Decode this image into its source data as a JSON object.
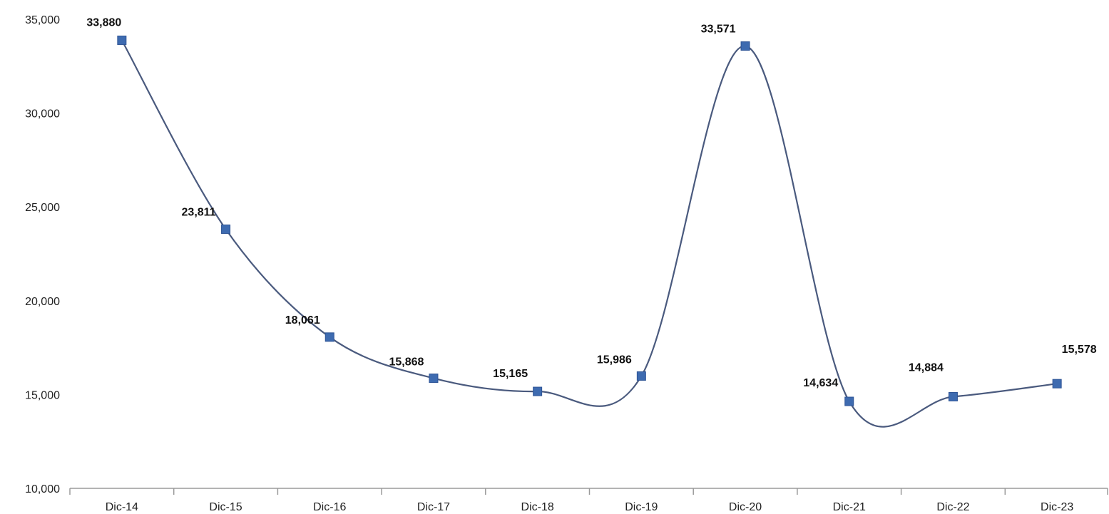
{
  "chart_data": {
    "type": "line",
    "smooth": true,
    "categories": [
      "Dic-14",
      "Dic-15",
      "Dic-16",
      "Dic-17",
      "Dic-18",
      "Dic-19",
      "Dic-20",
      "Dic-21",
      "Dic-22",
      "Dic-23"
    ],
    "series": [
      {
        "values": [
          33880,
          23811,
          18061,
          15868,
          15165,
          15986,
          33571,
          14634,
          14884,
          15578
        ],
        "data_labels": [
          "33,880",
          "23,811",
          "18,061",
          "15,868",
          "15,165",
          "15,986",
          "33,571",
          "14,634",
          "14,884",
          "15,578"
        ],
        "color": "#4a5a7e",
        "marker": "square",
        "marker_color": "#3e6bb0"
      }
    ],
    "ylim": [
      10000,
      35000
    ],
    "y_ticks": [
      10000,
      15000,
      20000,
      25000,
      30000,
      35000
    ],
    "y_tick_labels": [
      "10,000",
      "15,000",
      "20,000",
      "25,000",
      "30,000",
      "35,000"
    ],
    "grid": false,
    "legend": "none",
    "axis_color": "#9a9a9a"
  }
}
